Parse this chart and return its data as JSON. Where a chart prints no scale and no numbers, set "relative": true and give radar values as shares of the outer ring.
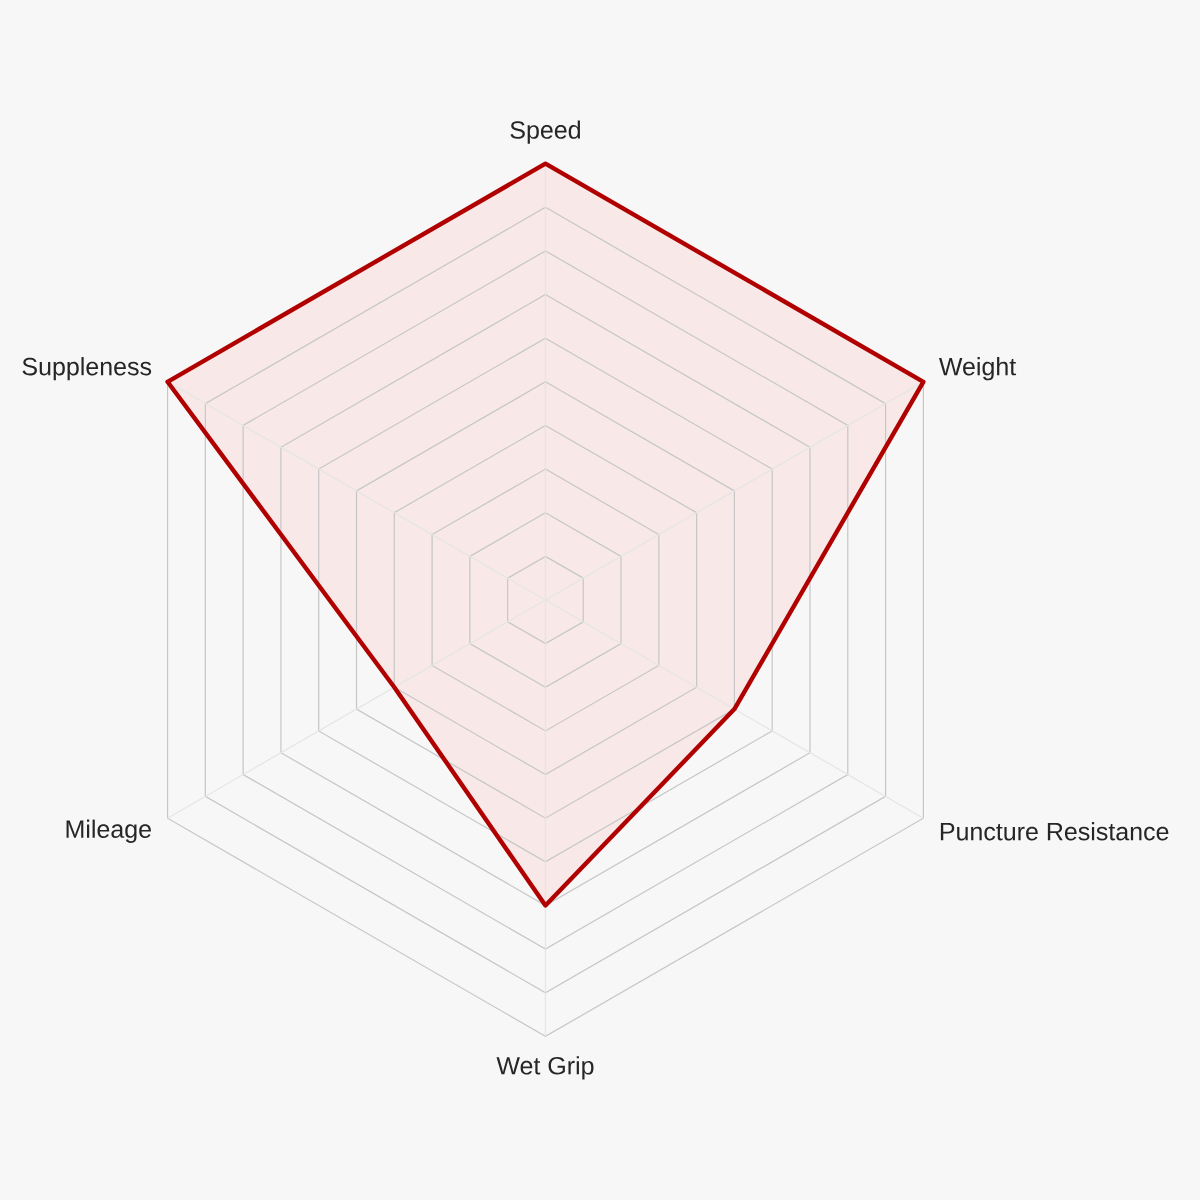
{
  "chart_data": {
    "type": "radar",
    "relative": true,
    "grid": true,
    "categories": [
      "Speed",
      "Weight",
      "Puncture Resistance",
      "Wet Grip",
      "Mileage",
      "Suppleness"
    ],
    "series": [
      {
        "color": "#b00000",
        "values": [
          1.0,
          1.0,
          0.5,
          0.7,
          0.4,
          1.0
        ]
      }
    ]
  }
}
